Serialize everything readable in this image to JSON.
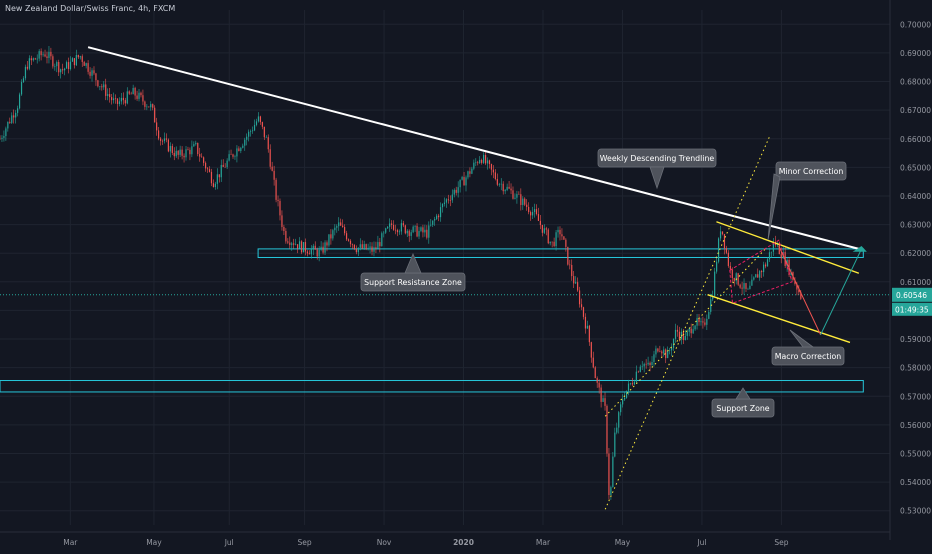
{
  "header": {
    "title": "New Zealand Dollar/Swiss Franc, 4h, FXCM"
  },
  "colors": {
    "background": "#131722",
    "grid": "#1f2430",
    "up": "#26a69a",
    "down": "#ef5350",
    "trendline": "#ffffff",
    "zone": "#26c6da",
    "channel": "#ffeb3b",
    "correction": "#e91e63",
    "axis_text": "#9598a1",
    "price_tag": "#26a69a",
    "callout_bg": "#4f535c"
  },
  "chart_data": {
    "type": "candlestick",
    "symbol": "NZDCHF",
    "timeframe": "4h",
    "ylim": [
      0.525,
      0.705
    ],
    "y_ticks": [
      "0.70000",
      "0.69000",
      "0.68000",
      "0.67000",
      "0.66000",
      "0.65000",
      "0.64000",
      "0.63000",
      "0.62000",
      "0.61000",
      "0.60000",
      "0.59000",
      "0.58000",
      "0.57000",
      "0.56000",
      "0.55000",
      "0.54000",
      "0.53000"
    ],
    "x_ticks": [
      "Mar",
      "May",
      "Jul",
      "Sep",
      "Nov",
      "2020",
      "Mar",
      "May",
      "Jul",
      "Sep"
    ],
    "current_price": "0.60546",
    "countdown": "01:49:35",
    "price_path": [
      {
        "t": 0,
        "p": 0.66
      },
      {
        "t": 2,
        "p": 0.672
      },
      {
        "t": 3,
        "p": 0.686
      },
      {
        "t": 5,
        "p": 0.69
      },
      {
        "t": 7,
        "p": 0.684
      },
      {
        "t": 9,
        "p": 0.689
      },
      {
        "t": 11,
        "p": 0.68
      },
      {
        "t": 13,
        "p": 0.672
      },
      {
        "t": 15,
        "p": 0.676
      },
      {
        "t": 17,
        "p": 0.671
      },
      {
        "t": 18,
        "p": 0.66
      },
      {
        "t": 20,
        "p": 0.654
      },
      {
        "t": 22,
        "p": 0.657
      },
      {
        "t": 24,
        "p": 0.645
      },
      {
        "t": 26,
        "p": 0.654
      },
      {
        "t": 28,
        "p": 0.662
      },
      {
        "t": 29,
        "p": 0.667
      },
      {
        "t": 30,
        "p": 0.659
      },
      {
        "t": 31,
        "p": 0.64
      },
      {
        "t": 32,
        "p": 0.626
      },
      {
        "t": 34,
        "p": 0.622
      },
      {
        "t": 36,
        "p": 0.62
      },
      {
        "t": 38,
        "p": 0.63
      },
      {
        "t": 40,
        "p": 0.622
      },
      {
        "t": 42,
        "p": 0.621
      },
      {
        "t": 44,
        "p": 0.63
      },
      {
        "t": 46,
        "p": 0.628
      },
      {
        "t": 48,
        "p": 0.627
      },
      {
        "t": 50,
        "p": 0.638
      },
      {
        "t": 52,
        "p": 0.645
      },
      {
        "t": 54,
        "p": 0.654
      },
      {
        "t": 56,
        "p": 0.645
      },
      {
        "t": 58,
        "p": 0.64
      },
      {
        "t": 60,
        "p": 0.634
      },
      {
        "t": 62,
        "p": 0.623
      },
      {
        "t": 63,
        "p": 0.628
      },
      {
        "t": 64,
        "p": 0.615
      },
      {
        "t": 65,
        "p": 0.605
      },
      {
        "t": 66,
        "p": 0.593
      },
      {
        "t": 67,
        "p": 0.575
      },
      {
        "t": 68,
        "p": 0.565
      },
      {
        "t": 68.5,
        "p": 0.531
      },
      {
        "t": 69,
        "p": 0.555
      },
      {
        "t": 70,
        "p": 0.57
      },
      {
        "t": 71,
        "p": 0.575
      },
      {
        "t": 72,
        "p": 0.582
      },
      {
        "t": 73,
        "p": 0.58
      },
      {
        "t": 74,
        "p": 0.588
      },
      {
        "t": 75,
        "p": 0.584
      },
      {
        "t": 76,
        "p": 0.593
      },
      {
        "t": 77,
        "p": 0.59
      },
      {
        "t": 78,
        "p": 0.596
      },
      {
        "t": 79,
        "p": 0.594
      },
      {
        "t": 80,
        "p": 0.605
      },
      {
        "t": 81,
        "p": 0.63
      },
      {
        "t": 82,
        "p": 0.614
      },
      {
        "t": 83,
        "p": 0.61
      },
      {
        "t": 84,
        "p": 0.606
      },
      {
        "t": 85,
        "p": 0.612
      },
      {
        "t": 86,
        "p": 0.616
      },
      {
        "t": 87,
        "p": 0.624
      },
      {
        "t": 88,
        "p": 0.619
      },
      {
        "t": 89,
        "p": 0.612
      },
      {
        "t": 90,
        "p": 0.605
      }
    ],
    "annotations": {
      "trendline_label": "Weekly Descending Trendline",
      "minor_correction": "Minor Correction",
      "support_resistance": "Support Resistance Zone",
      "macro_correction": "Macro Correction",
      "support_zone": "Support Zone"
    },
    "zones": {
      "support_resistance": [
        0.6185,
        0.6215
      ],
      "support": [
        0.5715,
        0.5755
      ]
    }
  }
}
